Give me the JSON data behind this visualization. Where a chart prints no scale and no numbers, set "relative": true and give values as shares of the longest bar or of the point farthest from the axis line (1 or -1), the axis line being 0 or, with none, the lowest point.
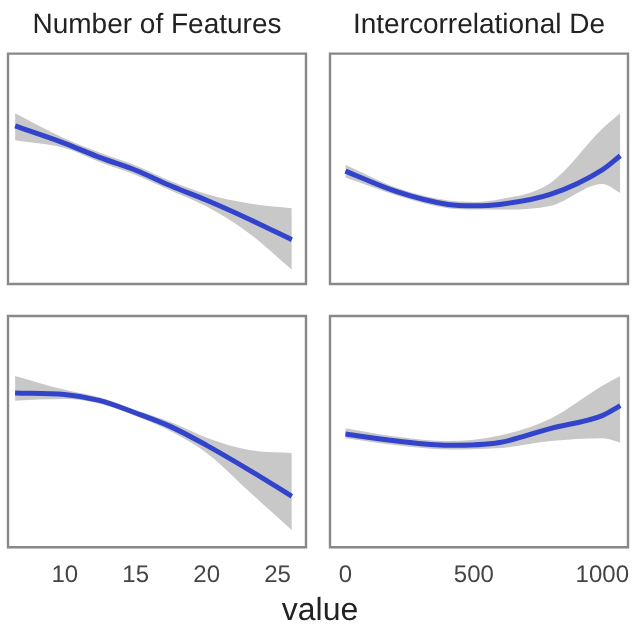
{
  "chart_data": [
    {
      "type": "line",
      "title": "Number of Features",
      "relative": true,
      "grid": false,
      "tick_labels": false,
      "marker": "none",
      "xlim": [
        6,
        27
      ],
      "xticks": [
        10,
        15,
        20,
        25
      ],
      "x": [
        6.5,
        10,
        12.5,
        15,
        17.5,
        20,
        23,
        26
      ],
      "series": [
        {
          "color": "#3344cc",
          "values": [
            1,
            0.89,
            0.8,
            0.72,
            0.62,
            0.53,
            0.41,
            0.28
          ],
          "upper": [
            1.08,
            0.92,
            0.83,
            0.75,
            0.65,
            0.57,
            0.51,
            0.48
          ],
          "lower": [
            0.91,
            0.86,
            0.77,
            0.69,
            0.59,
            0.49,
            0.32,
            0.09
          ]
        }
      ]
    },
    {
      "type": "line",
      "title": "Intercorrelational De",
      "relative": true,
      "grid": false,
      "tick_labels": false,
      "marker": "none",
      "xlim": [
        -60,
        1100
      ],
      "xticks": [
        0,
        500,
        1000
      ],
      "x": [
        0,
        200,
        400,
        500,
        600,
        800,
        1000,
        1070
      ],
      "series": [
        {
          "color": "#3344cc",
          "values": [
            0.88,
            0.72,
            0.62,
            0.61,
            0.62,
            0.7,
            0.89,
            1
          ],
          "upper": [
            0.93,
            0.75,
            0.65,
            0.64,
            0.66,
            0.79,
            1.21,
            1.33
          ],
          "lower": [
            0.83,
            0.69,
            0.59,
            0.58,
            0.58,
            0.61,
            0.78,
            0.71
          ]
        }
      ]
    },
    {
      "type": "line",
      "xlabel": "value",
      "relative": true,
      "grid": false,
      "tick_labels": "x",
      "marker": "none",
      "xlim": [
        6,
        27
      ],
      "xticks": [
        10,
        15,
        20,
        25
      ],
      "x": [
        6.5,
        10,
        12.5,
        15,
        17.5,
        20,
        23,
        26
      ],
      "series": [
        {
          "color": "#3344cc",
          "values": [
            1,
            0.99,
            0.95,
            0.87,
            0.78,
            0.66,
            0.5,
            0.33
          ],
          "upper": [
            1.11,
            1.02,
            0.97,
            0.89,
            0.81,
            0.71,
            0.63,
            0.61
          ],
          "lower": [
            0.95,
            0.96,
            0.93,
            0.85,
            0.75,
            0.61,
            0.36,
            0.11
          ]
        }
      ]
    },
    {
      "type": "line",
      "relative": true,
      "grid": false,
      "tick_labels": "x",
      "marker": "none",
      "xlim": [
        -60,
        1100
      ],
      "xticks": [
        0,
        500,
        1000
      ],
      "x": [
        0,
        200,
        400,
        600,
        800,
        1000,
        1070
      ],
      "series": [
        {
          "color": "#3344cc",
          "values": [
            0.8,
            0.75,
            0.72,
            0.74,
            0.84,
            0.93,
            1
          ],
          "upper": [
            0.84,
            0.78,
            0.75,
            0.79,
            0.91,
            1.14,
            1.21
          ],
          "lower": [
            0.77,
            0.72,
            0.69,
            0.7,
            0.75,
            0.77,
            0.74
          ]
        }
      ]
    }
  ]
}
